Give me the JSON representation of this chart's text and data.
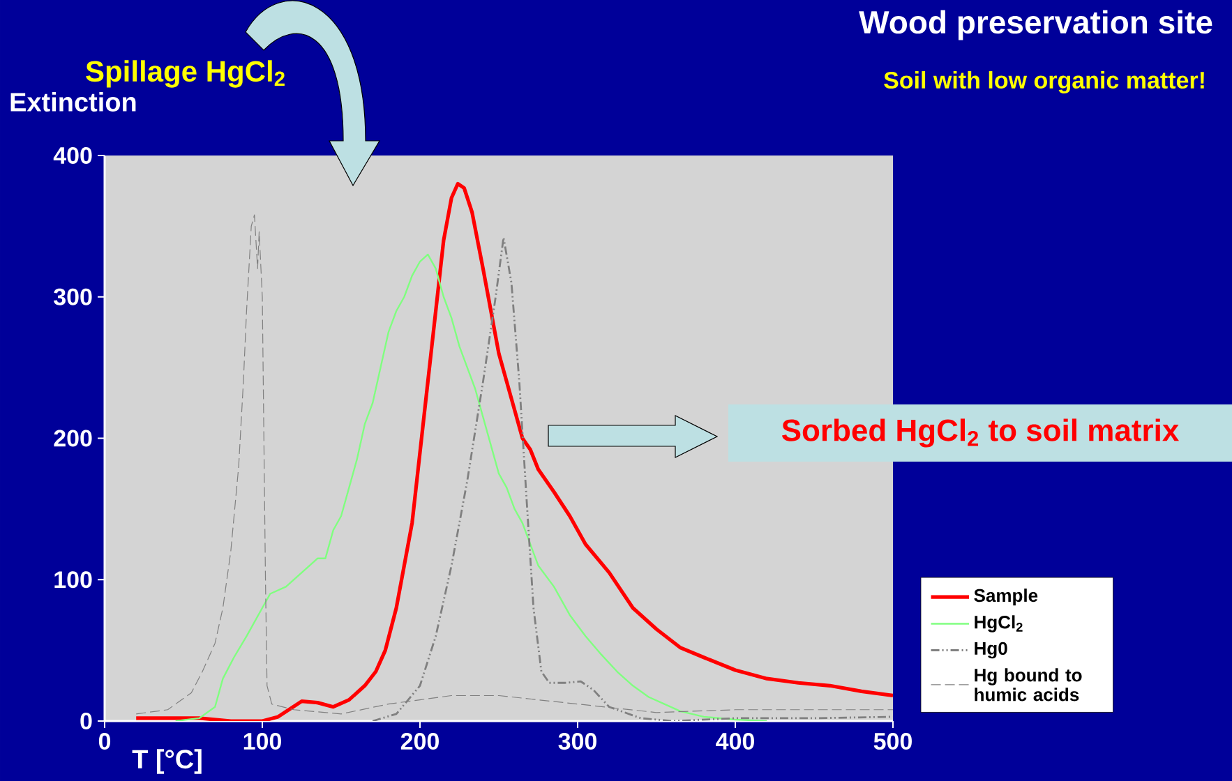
{
  "chart_data": {
    "type": "line",
    "title": "Wood preservation site",
    "subtitle": "Soil with low organic matter!",
    "xlabel": "T [°C]",
    "ylabel": "Extinction",
    "annotations": [
      "Spillage HgCl$_{2}$",
      "Sorbed HgCl$_{2}$ to soil matrix"
    ],
    "xlim": [
      0,
      500
    ],
    "ylim": [
      0,
      400
    ],
    "xticks": [
      0,
      100,
      200,
      300,
      400,
      500
    ],
    "yticks": [
      0,
      100,
      200,
      300,
      400
    ],
    "legend": "right",
    "series": [
      {
        "name": "Sample",
        "color": "#ff0000",
        "line_style": "solid",
        "x": [
          20,
          40,
          60,
          80,
          100,
          110,
          125,
          135,
          145,
          155,
          165,
          172,
          178,
          185,
          190,
          195,
          200,
          205,
          210,
          215,
          220,
          224,
          228,
          233,
          240,
          245,
          250,
          255,
          260,
          265,
          270,
          275,
          285,
          295,
          305,
          320,
          335,
          350,
          365,
          380,
          400,
          420,
          440,
          460,
          480,
          500
        ],
        "values": [
          2,
          2,
          2,
          0,
          0,
          3,
          14,
          13,
          10,
          15,
          25,
          35,
          50,
          80,
          110,
          140,
          190,
          240,
          290,
          340,
          370,
          380,
          377,
          360,
          320,
          290,
          260,
          240,
          220,
          200,
          192,
          178,
          162,
          145,
          125,
          105,
          80,
          65,
          52,
          45,
          36,
          30,
          27,
          25,
          21,
          18
        ]
      },
      {
        "name": "HgCl$_{2}$",
        "color": "#80ff80",
        "line_style": "solid",
        "x": [
          45,
          60,
          70,
          75,
          82,
          90,
          100,
          105,
          115,
          125,
          135,
          140,
          145,
          150,
          155,
          160,
          165,
          170,
          175,
          180,
          185,
          190,
          195,
          200,
          205,
          210,
          215,
          220,
          225,
          230,
          235,
          240,
          245,
          250,
          255,
          260,
          265,
          270,
          275,
          285,
          295,
          305,
          315,
          325,
          335,
          345,
          355,
          365,
          380,
          400,
          420
        ],
        "values": [
          0,
          2,
          10,
          30,
          45,
          60,
          80,
          90,
          95,
          105,
          115,
          115,
          135,
          145,
          165,
          185,
          210,
          225,
          250,
          275,
          290,
          300,
          315,
          325,
          330,
          320,
          300,
          285,
          265,
          250,
          235,
          215,
          195,
          175,
          165,
          150,
          140,
          125,
          110,
          95,
          75,
          60,
          47,
          35,
          25,
          17,
          12,
          7,
          3,
          1,
          0
        ]
      },
      {
        "name": "Hg0",
        "color": "#808080",
        "line_style": "dashdotdot",
        "x": [
          170,
          185,
          200,
          210,
          220,
          230,
          240,
          248,
          253,
          258,
          263,
          268,
          272,
          277,
          282,
          292,
          302,
          310,
          320,
          340,
          360,
          400,
          450,
          500
        ],
        "values": [
          0,
          5,
          25,
          60,
          110,
          170,
          240,
          300,
          342,
          310,
          240,
          150,
          80,
          35,
          27,
          27,
          28,
          22,
          10,
          2,
          0,
          2,
          2,
          3
        ]
      },
      {
        "name": "Hg bound to humic acids",
        "color": "#808080",
        "line_style": "dashed",
        "x": [
          20,
          40,
          55,
          62,
          70,
          75,
          80,
          85,
          88,
          90,
          93,
          95,
          97,
          98,
          100,
          102,
          103,
          106,
          120,
          150,
          180,
          200,
          220,
          250,
          300,
          350,
          400,
          450,
          500
        ],
        "values": [
          5,
          8,
          20,
          35,
          55,
          80,
          120,
          180,
          240,
          290,
          350,
          358,
          320,
          346,
          300,
          100,
          25,
          12,
          8,
          5,
          12,
          15,
          18,
          18,
          12,
          6,
          8,
          8,
          8
        ]
      }
    ]
  }
}
